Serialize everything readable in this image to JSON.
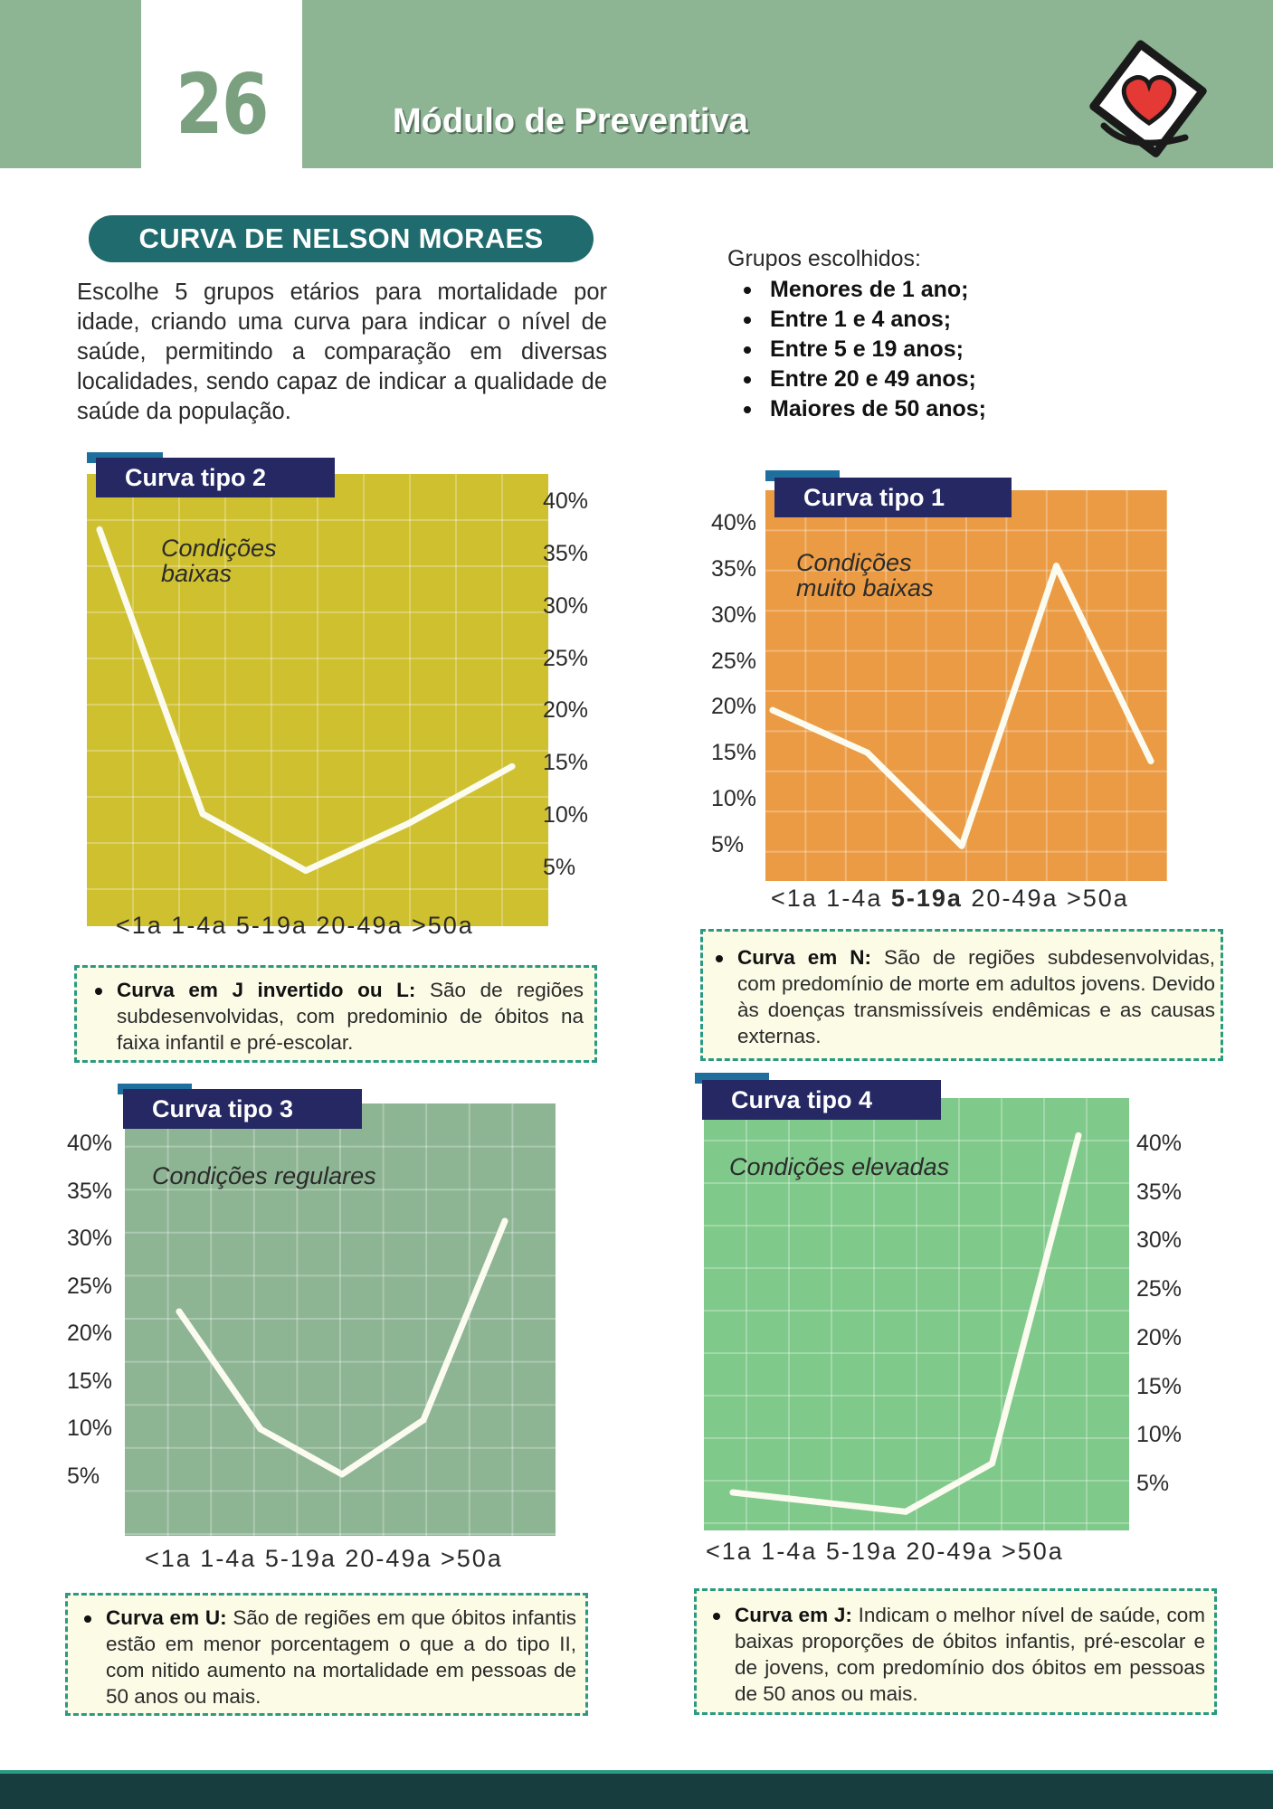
{
  "header": {
    "page_number": "26",
    "module_title": "Módulo de Preventiva",
    "logo_icon": "heart-card-icon"
  },
  "section": {
    "title": "CURVA DE NELSON MORAES",
    "intro": "Escolhe 5 grupos etários para mortalidade por idade, criando uma curva para indicar o nível de saúde, permitindo a comparação em diversas localidades, sendo capaz de indicar a qualidade de saúde da população."
  },
  "groups": {
    "title": "Grupos escolhidos:",
    "items": [
      "Menores de 1 ano;",
      "Entre 1 e 4 anos;",
      "Entre 5 e 19 anos;",
      "Entre 20 e 49 anos;",
      "Maiores de 50 anos;"
    ]
  },
  "chart_data": [
    {
      "type": "line",
      "tab_label": "Curva tipo 2",
      "condition_label": "Condições\n baixas",
      "background": "#cfc02f",
      "categories": [
        "<1a",
        "1-4a",
        "5-19a",
        "20-49a",
        ">50a"
      ],
      "values": [
        39,
        9,
        3,
        8,
        14
      ],
      "y_ticks": [
        "40%",
        "35%",
        "30%",
        "25%",
        "20%",
        "15%",
        "10%",
        "5%"
      ],
      "x_label_text": "<1a 1-4a 5-19a 20-49a >50a",
      "ylim": [
        0,
        42
      ]
    },
    {
      "type": "line",
      "tab_label": "Curva tipo 1",
      "condition_label": "Condições\nmuito baixas",
      "background": "#eb9b43",
      "categories": [
        "<1a",
        "1-4a",
        "5-19a",
        "20-49a",
        ">50a"
      ],
      "values": [
        18,
        13,
        2,
        35,
        12
      ],
      "y_ticks": [
        "40%",
        "35%",
        "30%",
        "25%",
        "20%",
        "15%",
        "10%",
        "5%"
      ],
      "x_label_parts": [
        "<1a 1-4a ",
        "5-19a",
        " 20-49a >50a"
      ],
      "ylim": [
        0,
        42
      ]
    },
    {
      "type": "line",
      "tab_label": "Curva tipo 3",
      "condition_label": "Condições regulares",
      "background": "#8db493",
      "categories": [
        "<1a",
        "1-4a",
        "5-19a",
        "20-49a",
        ">50a"
      ],
      "values": [
        23,
        10,
        5,
        11,
        33
      ],
      "y_ticks": [
        "40%",
        "35%",
        "30%",
        "25%",
        "20%",
        "15%",
        "10%",
        "5%"
      ],
      "x_label_text": "<1a 1-4a 5-19a 20-49a >50a",
      "ylim": [
        0,
        43
      ]
    },
    {
      "type": "line",
      "tab_label": "Curva tipo 4",
      "condition_label": "Condições elevadas",
      "background": "#7fc98a",
      "categories": [
        "<1a",
        "1-4a",
        "5-19a",
        "20-49a",
        ">50a"
      ],
      "values": [
        3,
        2,
        1,
        6,
        40
      ],
      "y_ticks": [
        "40%",
        "35%",
        "30%",
        "25%",
        "20%",
        "15%",
        "10%",
        "5%"
      ],
      "x_label_text": "<1a 1-4a 5-19a 20-49a >50a",
      "ylim": [
        0,
        42
      ]
    }
  ],
  "notes": [
    {
      "bold": "Curva em J invertido ou L:",
      "text": " São de regiões subdesenvolvidas, com predominio de óbitos na faixa infantil e pré-escolar."
    },
    {
      "bold": "Curva em N:",
      "text": " São de regiões subdesenvolvidas, com predomínio de morte em adultos jovens. Devido às doenças transmissíveis endêmicas e as causas externas."
    },
    {
      "bold": "Curva em U:",
      "text": " São de regiões em que óbitos infantis estão em menor porcentagem o que a do tipo II, com nitido aumento na mortalidade em pessoas de 50 anos ou mais."
    },
    {
      "bold": "Curva em J:",
      "text": " Indicam o melhor nível de saúde, com baixas proporções de óbitos infantis, pré-escolar e de jovens, com predomínio dos óbitos em pessoas de 50 anos ou mais."
    }
  ]
}
